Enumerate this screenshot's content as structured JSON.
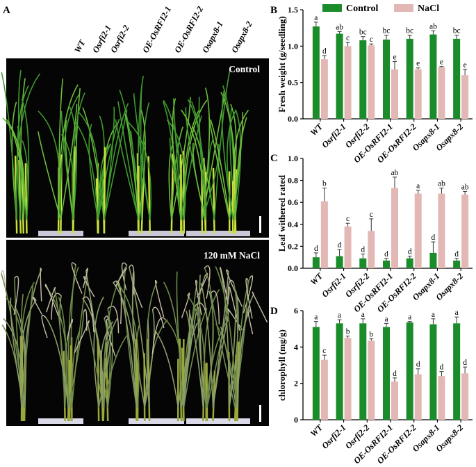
{
  "panel_a": {
    "letter": "A",
    "genotypes": [
      "WT",
      "Osrfi2-1",
      "Osrfi2-2",
      "OE-OsRFI2-1",
      "OE-OsRFI2-2",
      "Osapx8-1",
      "Osapx8-2"
    ],
    "control_label": "Control",
    "nacl_label": "120 mM NaCl"
  },
  "legend": {
    "control": "Control",
    "nacl": "NaCl"
  },
  "colors": {
    "control": "#1a8c2a",
    "nacl": "#e3b7b4",
    "error": "#333333",
    "photo_bg": "#050505"
  },
  "chart_data": [
    {
      "panel": "B",
      "type": "bar",
      "ylabel": "Fresh weight (g/seedling)",
      "ylim": [
        0,
        1.5
      ],
      "yticks": [
        "0.0",
        "0.5",
        "1.0",
        "1.5"
      ],
      "categories": [
        "WT",
        "Osrfi2-1",
        "Osrfi2-2",
        "OE-OsRFI2-1",
        "OE-OsRFI2-2",
        "Osapx8-1",
        "Osapx8-2"
      ],
      "series": [
        {
          "name": "Control",
          "values": [
            1.27,
            1.17,
            1.08,
            1.09,
            1.1,
            1.16,
            1.1
          ],
          "errors": [
            0.06,
            0.03,
            0.05,
            0.06,
            0.05,
            0.05,
            0.05
          ],
          "letters": [
            "a",
            "ab",
            "bc",
            "bc",
            "bc",
            "ab",
            "bc"
          ]
        },
        {
          "name": "NaCl",
          "values": [
            0.82,
            1.0,
            1.01,
            0.68,
            0.68,
            0.71,
            0.6
          ],
          "errors": [
            0.05,
            0.05,
            0.02,
            0.11,
            0.02,
            0.01,
            0.08
          ],
          "letters": [
            "d",
            "c",
            "c",
            "e",
            "e",
            "e",
            "e"
          ]
        }
      ]
    },
    {
      "panel": "C",
      "type": "bar",
      "ylabel": "Leaf withered rated",
      "ylim": [
        0,
        1.0
      ],
      "yticks": [
        "0.0",
        "0.2",
        "0.4",
        "0.6",
        "0.8",
        "1.0"
      ],
      "categories": [
        "WT",
        "Osrfi2-1",
        "Osrfi2-2",
        "OE-OsRFI2-1",
        "OE-OsRFI2-2",
        "Osapx8-1",
        "Osapx8-2"
      ],
      "series": [
        {
          "name": "Control",
          "values": [
            0.1,
            0.11,
            0.09,
            0.07,
            0.09,
            0.14,
            0.07
          ],
          "errors": [
            0.04,
            0.06,
            0.04,
            0.02,
            0.02,
            0.1,
            0.02
          ],
          "letters": [
            "d",
            "d",
            "d",
            "d",
            "d",
            "d",
            "d"
          ]
        },
        {
          "name": "NaCl",
          "values": [
            0.61,
            0.38,
            0.34,
            0.73,
            0.68,
            0.68,
            0.67
          ],
          "errors": [
            0.12,
            0.03,
            0.11,
            0.1,
            0.03,
            0.05,
            0.03
          ],
          "letters": [
            "b",
            "c",
            "c",
            "ab",
            "a",
            "ab",
            "ab"
          ]
        }
      ]
    },
    {
      "panel": "D",
      "type": "bar",
      "ylabel": "chlorophyll (mg/g)",
      "ylim": [
        0,
        6
      ],
      "yticks": [
        "0",
        "2",
        "4",
        "6"
      ],
      "categories": [
        "WT",
        "Osrfi2-1",
        "Osrfi2-2",
        "OE-OsRFI2-1",
        "OE-OsRFI2-2",
        "Osapx8-1",
        "Osapx8-2"
      ],
      "series": [
        {
          "name": "Control",
          "values": [
            5.1,
            5.3,
            5.3,
            5.1,
            5.35,
            5.25,
            5.3
          ],
          "errors": [
            0.3,
            0.2,
            0.25,
            0.2,
            0.05,
            0.3,
            0.35
          ],
          "letters": [
            "a",
            "a",
            "a",
            "a",
            "a",
            "a",
            "a"
          ]
        },
        {
          "name": "NaCl",
          "values": [
            3.3,
            4.5,
            4.35,
            2.1,
            2.5,
            2.4,
            2.55
          ],
          "errors": [
            0.25,
            0.1,
            0.1,
            0.2,
            0.3,
            0.25,
            0.35
          ],
          "letters": [
            "c",
            "b",
            "b",
            "d",
            "d",
            "d",
            "d"
          ]
        }
      ]
    }
  ]
}
